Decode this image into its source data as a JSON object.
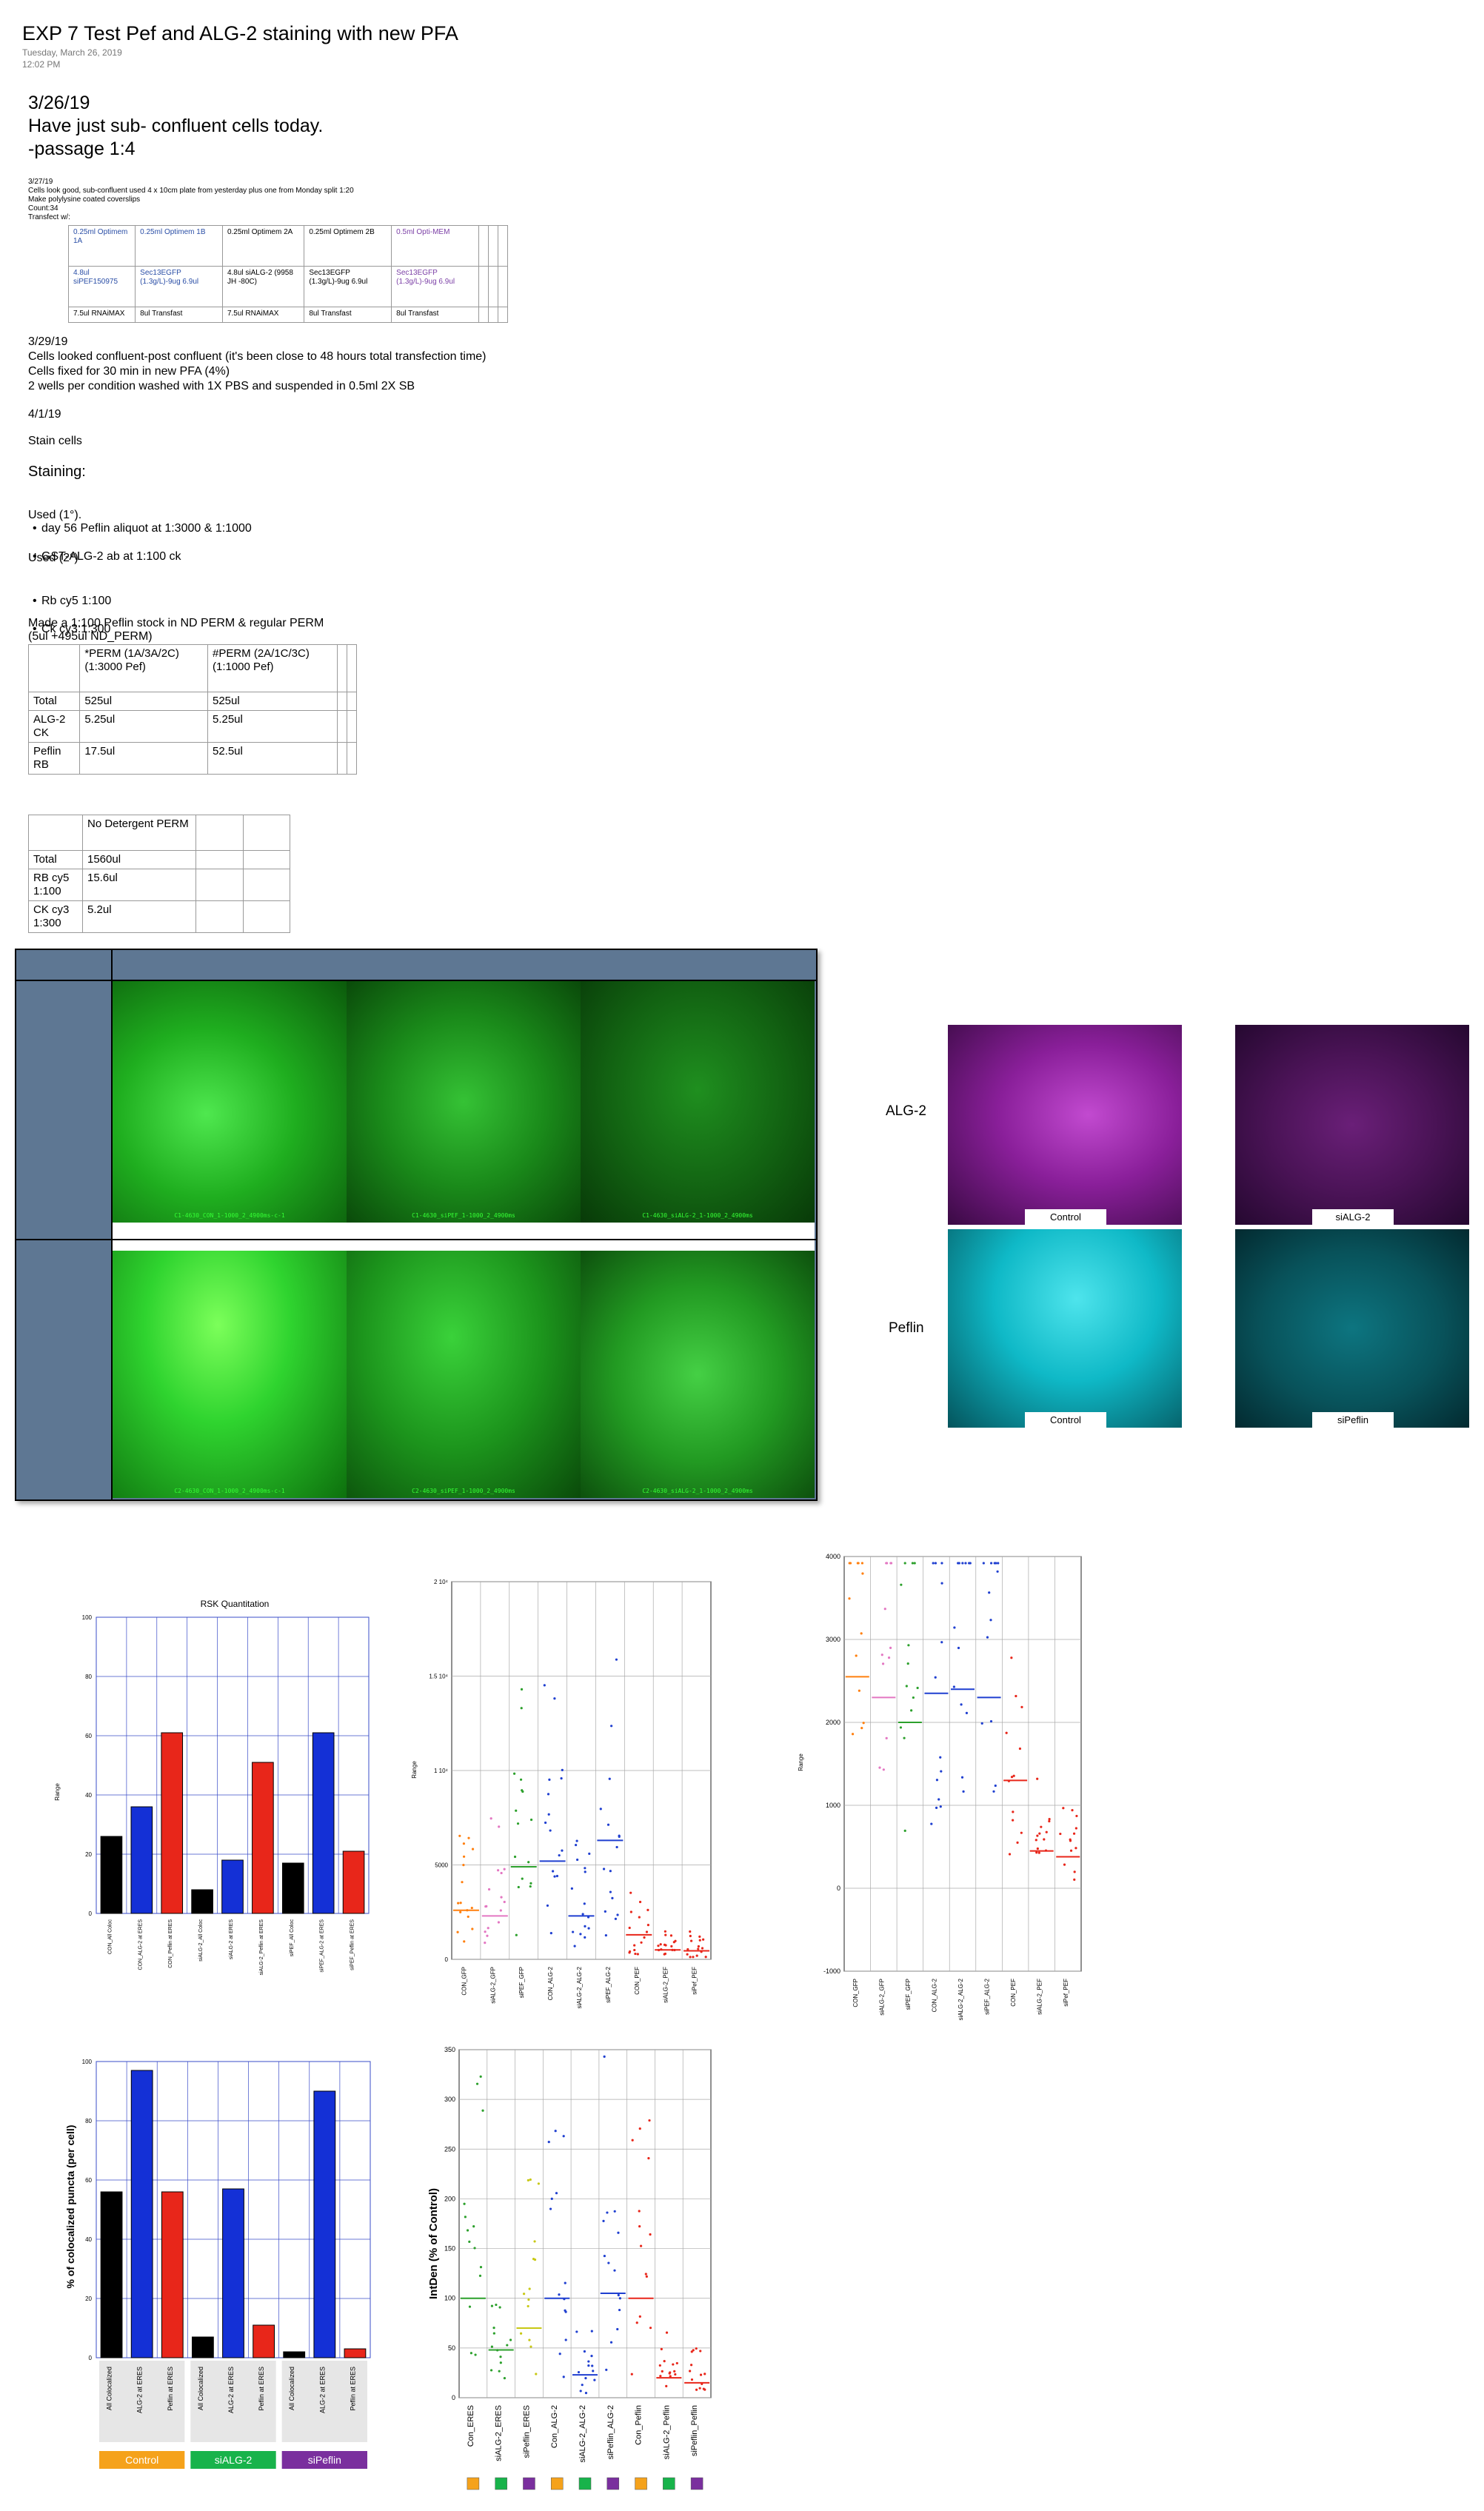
{
  "header": {
    "title": "EXP 7 Test Pef and ALG-2 staining with new PFA",
    "date": "Tuesday, March 26, 2019",
    "time": "12:02 PM"
  },
  "intro": {
    "date": "3/26/19",
    "line1": "Have just sub- confluent cells today.",
    "line2": "-passage 1:4"
  },
  "note_327": {
    "date": "3/27/19",
    "lines": [
      "Cells look good, sub-confluent used 4 x 10cm plate from yesterday plus one from Monday split 1:20",
      "Make polylysine coated coverslips",
      "Count:34",
      "Transfect w/:"
    ]
  },
  "transfect_table": {
    "rows": [
      [
        "0.25ml Optimem 1A",
        "0.25ml Optimem 1B",
        "0.25ml Optimem 2A",
        "0.25ml Optimem 2B",
        "0.5ml Opti-MEM",
        "",
        "",
        ""
      ],
      [
        "4.8ul siPEF150975",
        "Sec13EGFP (1.3g/L)-9ug 6.9ul",
        "4.8ul siALG-2 (9958 JH -80C)",
        "Sec13EGFP (1.3g/L)-9ug 6.9ul",
        "Sec13EGFP (1.3g/L)-9ug 6.9ul",
        "",
        "",
        ""
      ],
      [
        "7.5ul RNAiMAX",
        "8ul Transfast",
        "7.5ul RNAiMAX",
        "8ul Transfast",
        "8ul Transfast",
        "",
        "",
        ""
      ]
    ]
  },
  "note_329": {
    "date": "3/29/19",
    "lines": [
      "Cells looked confluent-post confluent (it's been close to 48 hours total transfection time)",
      "Cells fixed for 30 min in new PFA (4%)",
      "2 wells per condition washed with 1X PBS and suspended in 0.5ml 2X SB"
    ]
  },
  "note_41": {
    "date": "4/1/19",
    "stain": "Stain cells",
    "staining": "Staining:",
    "used1": "Used (1°).",
    "used1_items": [
      "day 56 Peflin aliquot at  1:3000 & 1:1000",
      "GST-ALG-2 ab at 1:100 ck"
    ],
    "used2": "Used (2°)",
    "used2_items": [
      "Rb cy5 1:100",
      "Ck cy3:1:300"
    ],
    "made": "Made a 1:100 Peflin stock in ND PERM & regular PERM",
    "made2": "(5ul +495ul ND_PERM)"
  },
  "perm_table": {
    "rows": [
      [
        "",
        "*PERM (1A/3A/2C) (1:3000 Pef)",
        "#PERM (2A/1C/3C) (1:1000 Pef)",
        "",
        ""
      ],
      [
        "Total",
        "525ul",
        "525ul",
        "",
        ""
      ],
      [
        "ALG-2 CK",
        "5.25ul",
        "5.25ul",
        "",
        ""
      ],
      [
        "Peflin RB",
        "17.5ul",
        "52.5ul",
        "",
        ""
      ]
    ]
  },
  "nd_table": {
    "rows": [
      [
        "",
        "No Detergent PERM",
        "",
        ""
      ],
      [
        "Total",
        "1560ul",
        "",
        ""
      ],
      [
        "RB cy5 1:100",
        "15.6ul",
        "",
        ""
      ],
      [
        "CK cy3 1:300",
        "5.2ul",
        "",
        ""
      ]
    ]
  },
  "micrographs": {
    "captions_row1": [
      "C1-4630_CON_1-1000_2_4900ms-c-1",
      "C1-4630_siPEF_1-1000_2_4900ms",
      "C1-4630_siALG-2_1-1000_2_4900ms"
    ],
    "captions_row2": [
      "C2-4630_CON_1-1000_2_4900ms-c-1",
      "C2-4630_siPEF_1-1000_2_4900ms",
      "C2-4630_siALG-2_1-1000_2_4900ms"
    ]
  },
  "fluor": {
    "row_labels": [
      "ALG-2",
      "Peflin"
    ],
    "labels": [
      "Control",
      "siALG-2",
      "Control",
      "siPeflin"
    ],
    "colors": {
      "magenta": "#8a1f9a",
      "cyan": "#0fb9c7"
    }
  },
  "chart_data": [
    {
      "type": "bar",
      "title": "RSK Quantitation",
      "ylabel": "Range",
      "ylim": [
        0,
        100
      ],
      "categories": [
        "CON_All Coloc",
        "CON_ALG-2 at ERES",
        "CON_Peflin at ERES",
        "siALG-2_All Coloc",
        "siALG-2 at ERES",
        "siALG-2_Peflin at ERES",
        "siPEF_All Coloc",
        "siPEF_ALG-2 at ERES",
        "siPEF_Peflin at ERES"
      ],
      "values": [
        26,
        36,
        61,
        8,
        18,
        51,
        17,
        61,
        21
      ],
      "colors": [
        "#000000",
        "#1430d6",
        "#e8261a",
        "#000000",
        "#1430d6",
        "#e8261a",
        "#000000",
        "#1430d6",
        "#e8261a"
      ]
    },
    {
      "type": "scatter",
      "ylabel": "Range",
      "ylim": [
        0,
        20000
      ],
      "yticks": [
        "0",
        "5000",
        "1 10⁴",
        "1.5 10⁴",
        "2 10⁴"
      ],
      "categories": [
        "CON_GFP",
        "siALG-2_GFP",
        "siPEF_GFP",
        "CON_ALG-2",
        "siALG-2_ALG-2",
        "siPEF_ALG-2",
        "CON_PEF",
        "siALG-2_PEF",
        "siPef_PEF"
      ],
      "means": [
        2600,
        2300,
        4900,
        5200,
        2300,
        6300,
        1300,
        500,
        450
      ],
      "colors": [
        "#ff7f0e",
        "#e377c2",
        "#2ca02c",
        "#1f3fd0",
        "#1f3fd0",
        "#1f3fd0",
        "#e8261a",
        "#e8261a",
        "#e8261a"
      ]
    },
    {
      "type": "scatter",
      "ylabel": "Range",
      "ylim": [
        -1000,
        4000
      ],
      "yticks": [
        "-1000",
        "0",
        "1000",
        "2000",
        "3000",
        "4000"
      ],
      "categories": [
        "CON_GFP",
        "siALG-2_GFP",
        "siPEF_GFP",
        "CON_ALG-2",
        "siALG-2_ALG-2",
        "siPEF_ALG-2",
        "CON_PEF",
        "siALG-2_PEF",
        "siPef_PEF"
      ],
      "means": [
        2550,
        2300,
        2000,
        2350,
        2400,
        2300,
        1300,
        450,
        380
      ],
      "colors": [
        "#ff7f0e",
        "#e377c2",
        "#2ca02c",
        "#1f3fd0",
        "#1f3fd0",
        "#1f3fd0",
        "#e8261a",
        "#e8261a",
        "#e8261a"
      ]
    },
    {
      "type": "bar",
      "ylabel": "% of colocalized puncta (per cell)",
      "ylim": [
        0,
        100
      ],
      "categories": [
        "All Colocalized",
        "ALG-2 at ERES",
        "Peflin at ERES",
        "All Colocalized",
        "ALG-2 at ERES",
        "Peflin at ERES",
        "All Colocalized",
        "ALG-2 at ERES",
        "Peflin at ERES"
      ],
      "values": [
        56,
        97,
        56,
        7,
        57,
        11,
        2,
        90,
        3
      ],
      "colors": [
        "#000000",
        "#1430d6",
        "#e8261a",
        "#000000",
        "#1430d6",
        "#e8261a",
        "#000000",
        "#1430d6",
        "#e8261a"
      ],
      "groups": [
        {
          "label": "Control",
          "color": "#f5a21b"
        },
        {
          "label": "siALG-2",
          "color": "#18b34b"
        },
        {
          "label": "siPeflin",
          "color": "#7a2f9e"
        }
      ]
    },
    {
      "type": "scatter",
      "ylabel": "IntDen (% of Control)",
      "ylim": [
        0,
        350
      ],
      "yticks": [
        "0",
        "50",
        "100",
        "150",
        "200",
        "250",
        "300",
        "350"
      ],
      "categories": [
        "Con_ERES",
        "siALG-2_ERES",
        "siPeflin_ERES",
        "Con_ALG-2",
        "siALG-2_ALG-2",
        "siPeflin_ALG-2",
        "Con_Peflin",
        "siALG-2_Peflin",
        "siPeflin_Peflin"
      ],
      "means": [
        100,
        48,
        70,
        100,
        23,
        105,
        100,
        20,
        15
      ],
      "colors": [
        "#2ca02c",
        "#2ca02c",
        "#c8c814",
        "#1f3fd0",
        "#1f3fd0",
        "#1f3fd0",
        "#e8261a",
        "#e8261a",
        "#e8261a"
      ],
      "chip_colors": [
        "#f5a21b",
        "#18b34b",
        "#7a2f9e",
        "#f5a21b",
        "#18b34b",
        "#7a2f9e",
        "#f5a21b",
        "#18b34b",
        "#7a2f9e"
      ]
    }
  ]
}
